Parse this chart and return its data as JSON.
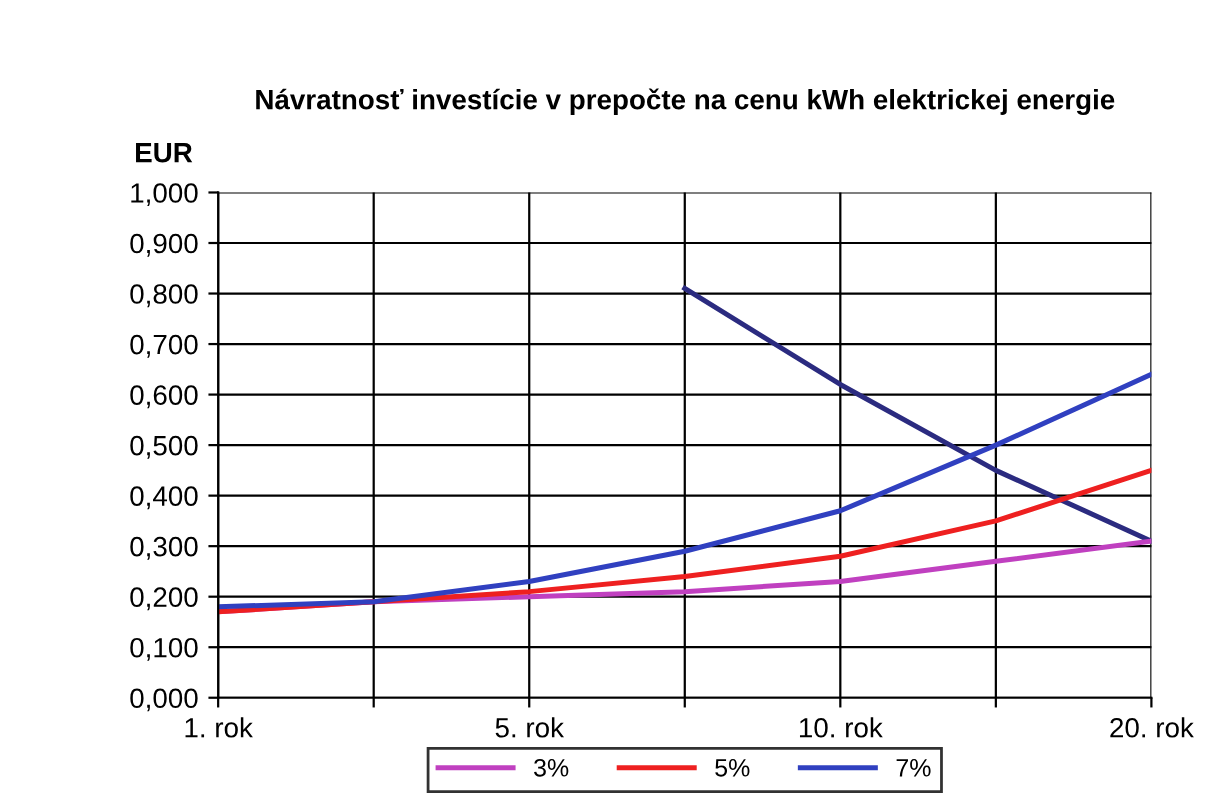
{
  "chart_data": {
    "type": "line",
    "title": "Návratnosť investície v prepočte na cenu kWh elektrickej energie",
    "ylabel": "EUR",
    "categories": [
      "1. rok",
      null,
      "5. rok",
      null,
      "10. rok",
      null,
      "20. rok"
    ],
    "series": [
      {
        "color": "#2b2b80",
        "values": [
          null,
          null,
          null,
          0.81,
          0.62,
          0.45,
          0.31
        ]
      },
      {
        "name": "3%",
        "color": "#c040c0",
        "values": [
          0.17,
          0.19,
          0.2,
          0.21,
          0.23,
          0.27,
          0.31
        ]
      },
      {
        "name": "5%",
        "color": "#ee2020",
        "values": [
          0.17,
          0.19,
          0.21,
          0.24,
          0.28,
          0.35,
          0.45
        ]
      },
      {
        "name": "7%",
        "color": "#3040c0",
        "values": [
          0.18,
          0.19,
          0.23,
          0.29,
          0.37,
          0.5,
          0.64
        ]
      }
    ],
    "ylim": [
      0,
      1
    ],
    "yticks": [
      {
        "value": 0,
        "label": "0,000"
      },
      {
        "value": 0.1,
        "label": "0,100"
      },
      {
        "value": 0.2,
        "label": "0,200"
      },
      {
        "value": 0.3,
        "label": "0,300"
      },
      {
        "value": 0.4,
        "label": "0,400"
      },
      {
        "value": 0.5,
        "label": "0,500"
      },
      {
        "value": 0.6,
        "label": "0,600"
      },
      {
        "value": 0.7,
        "label": "0,700"
      },
      {
        "value": 0.8,
        "label": "0,800"
      },
      {
        "value": 0.9,
        "label": "0,900"
      },
      {
        "value": 1.0,
        "label": "1,000"
      }
    ],
    "grid": true,
    "legend": "bottom",
    "marker": "none",
    "line_style": "solid"
  }
}
